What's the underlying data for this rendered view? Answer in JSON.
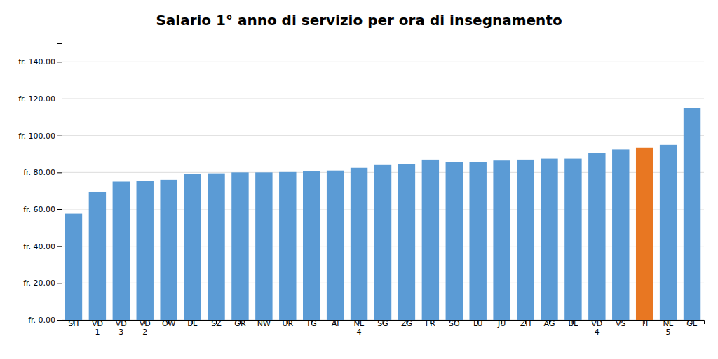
{
  "chart_data": {
    "type": "bar",
    "title": "Salario 1° anno di servizio per ora di insegnamento",
    "categories": [
      "SH",
      "VD\n1",
      "VD\n3",
      "VD\n2",
      "OW",
      "BE",
      "SZ",
      "GR",
      "NW",
      "UR",
      "TG",
      "AI",
      "NE\n4",
      "SG",
      "ZG",
      "FR",
      "SO",
      "LU",
      "JU",
      "ZH",
      "AG",
      "BL",
      "VD\n4",
      "VS",
      "TI",
      "NE\n5",
      "GE"
    ],
    "values": [
      57.5,
      69.5,
      75.0,
      75.5,
      76.0,
      79.0,
      79.5,
      80.0,
      80.0,
      80.2,
      80.5,
      81.0,
      82.5,
      84.0,
      84.5,
      87.0,
      85.5,
      85.5,
      86.5,
      87.0,
      87.5,
      87.5,
      90.5,
      92.5,
      93.5,
      95.0,
      115.0
    ],
    "colors": [
      "#5b9bd5",
      "#5b9bd5",
      "#5b9bd5",
      "#5b9bd5",
      "#5b9bd5",
      "#5b9bd5",
      "#5b9bd5",
      "#5b9bd5",
      "#5b9bd5",
      "#5b9bd5",
      "#5b9bd5",
      "#5b9bd5",
      "#5b9bd5",
      "#5b9bd5",
      "#5b9bd5",
      "#5b9bd5",
      "#5b9bd5",
      "#5b9bd5",
      "#5b9bd5",
      "#5b9bd5",
      "#5b9bd5",
      "#5b9bd5",
      "#5b9bd5",
      "#5b9bd5",
      "#e87722",
      "#5b9bd5",
      "#5b9bd5"
    ],
    "ylim": [
      0,
      150
    ],
    "yticks": [
      {
        "value": 0,
        "label": "fr. 0.00"
      },
      {
        "value": 20,
        "label": "fr. 20.00"
      },
      {
        "value": 40,
        "label": "fr. 40.00"
      },
      {
        "value": 60,
        "label": "fr. 60.00"
      },
      {
        "value": 80,
        "label": "fr. 80.00"
      },
      {
        "value": 100,
        "label": "fr. 100.00"
      },
      {
        "value": 120,
        "label": "fr. 120.00"
      },
      {
        "value": 140,
        "label": "fr. 140.00"
      }
    ],
    "grid": true
  }
}
